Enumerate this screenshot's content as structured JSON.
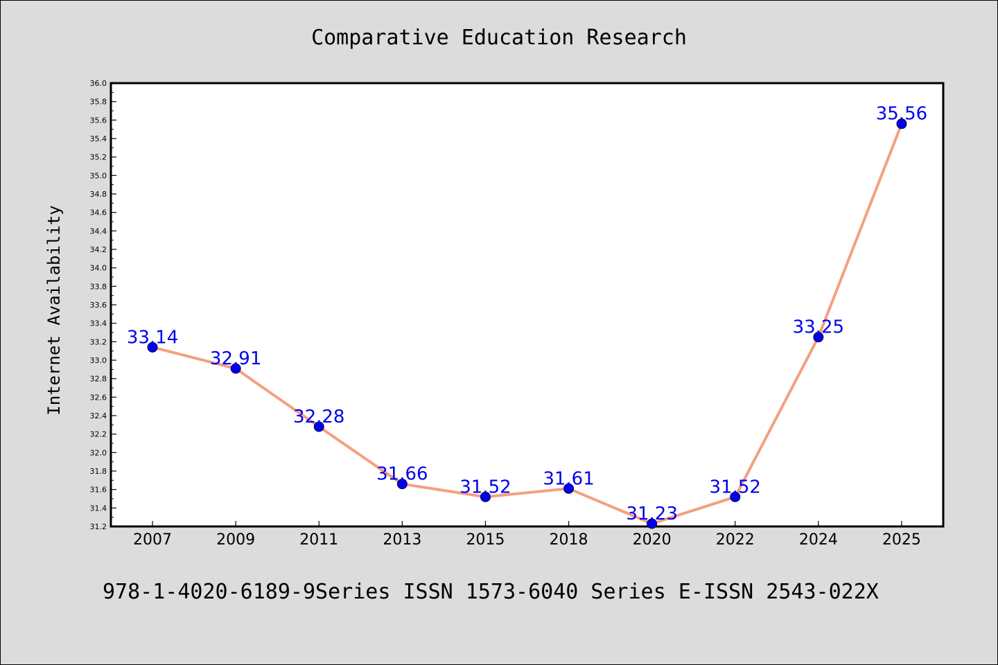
{
  "chart_data": {
    "type": "line",
    "title": "Comparative Education Research",
    "xlabel": "",
    "ylabel": "Internet Availability",
    "footer": "978-1-4020-6189-9Series ISSN 1573-6040 Series E-ISSN 2543-022X",
    "categories": [
      "2007",
      "2009",
      "2011",
      "2013",
      "2015",
      "2018",
      "2020",
      "2022",
      "2024",
      "2025"
    ],
    "series": [
      {
        "values": [
          33.14,
          32.91,
          32.28,
          31.66,
          31.52,
          31.61,
          31.23,
          31.52,
          33.25,
          35.56
        ],
        "data_labels": [
          "33.14",
          "32.91",
          "32.28",
          "31.66",
          "31.52",
          "31.61",
          "31.23",
          "31.52",
          "33.25",
          "35.56"
        ],
        "line_color": "#f4a07f",
        "marker_color": "#0000ee"
      }
    ],
    "ylim": [
      31.2,
      36.0
    ],
    "y_ticks": [
      "31.2",
      "31.4",
      "31.6",
      "31.8",
      "32.0",
      "32.2",
      "32.4",
      "32.6",
      "32.8",
      "33.0",
      "33.2",
      "33.4",
      "33.6",
      "33.8",
      "34.0",
      "34.2",
      "34.4",
      "34.6",
      "34.8",
      "35.0",
      "35.2",
      "35.4",
      "35.6",
      "35.8",
      "36.0"
    ],
    "grid": false,
    "legend": "none",
    "plot_background": "#ffffff",
    "label_color": "#0000ee"
  }
}
